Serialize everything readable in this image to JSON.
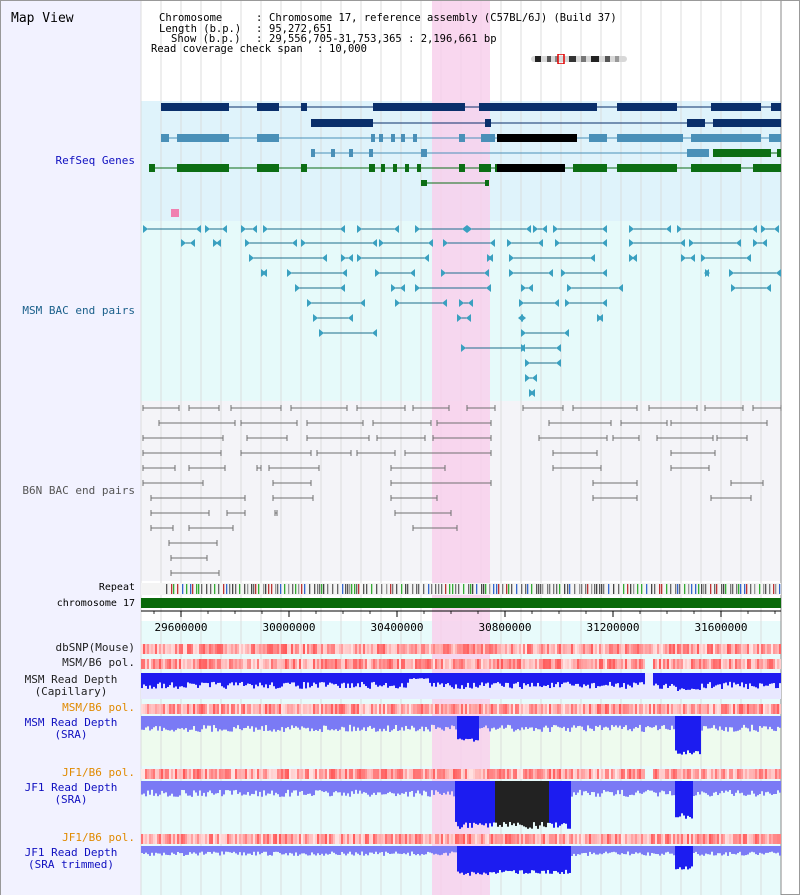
{
  "app": {
    "title": "Map View"
  },
  "info": {
    "chromosome_key": "Chromosome",
    "chromosome_val": "Chromosome 17, reference assembly (C57BL/6J) (Build 37)",
    "length_key": "Length (b.p.)",
    "length_val": "95,272,651",
    "show_key": "Show (b.p.)",
    "show_val": "29,556,705-31,753,365 : 2,196,661 bp",
    "span_key": "Read coverage check span",
    "span_val": "10,000"
  },
  "tracks": {
    "refseq": "RefSeq Genes",
    "msm_bac": "MSM BAC end pairs",
    "b6n_bac": "B6N BAC end pairs",
    "repeat": "Repeat",
    "chromosome": "chromosome 17",
    "dbsnp": "dbSNP(Mouse)",
    "msm_pol": "MSM/B6 pol.",
    "msm_depth_cap_1": "MSM Read Depth",
    "msm_depth_cap_2": "(Capillary)",
    "msm_pol2": "MSM/B6 pol.",
    "msm_depth_sra_1": "MSM Read Depth",
    "msm_depth_sra_2": "(SRA)",
    "jf1_pol": "JF1/B6 pol.",
    "jf1_depth_1": "JF1 Read Depth",
    "jf1_depth_2": "(SRA)",
    "jf1_pol2": "JF1/B6 pol.",
    "jf1_trim_1": "JF1 Read Depth",
    "jf1_trim_2": "(SRA trimmed)"
  },
  "axis": {
    "ticks": [
      "29600000",
      "30000000",
      "30400000",
      "30800000",
      "31200000",
      "31600000"
    ]
  },
  "colors": {
    "refseq_bg": "#dff3fb",
    "msm_bg": "#e6fafa",
    "b6n_bg": "#f4f4f8",
    "highlight": "#f8d0ec",
    "gene_dark": "#0a2f6b",
    "gene_mid": "#4a90b8",
    "gene_green": "#0c6e14",
    "msm_line": "#1c6e8c",
    "b6n_line": "#707070",
    "depth_blue": "#1c1cf0",
    "depth_light": "#7a7af5"
  }
}
